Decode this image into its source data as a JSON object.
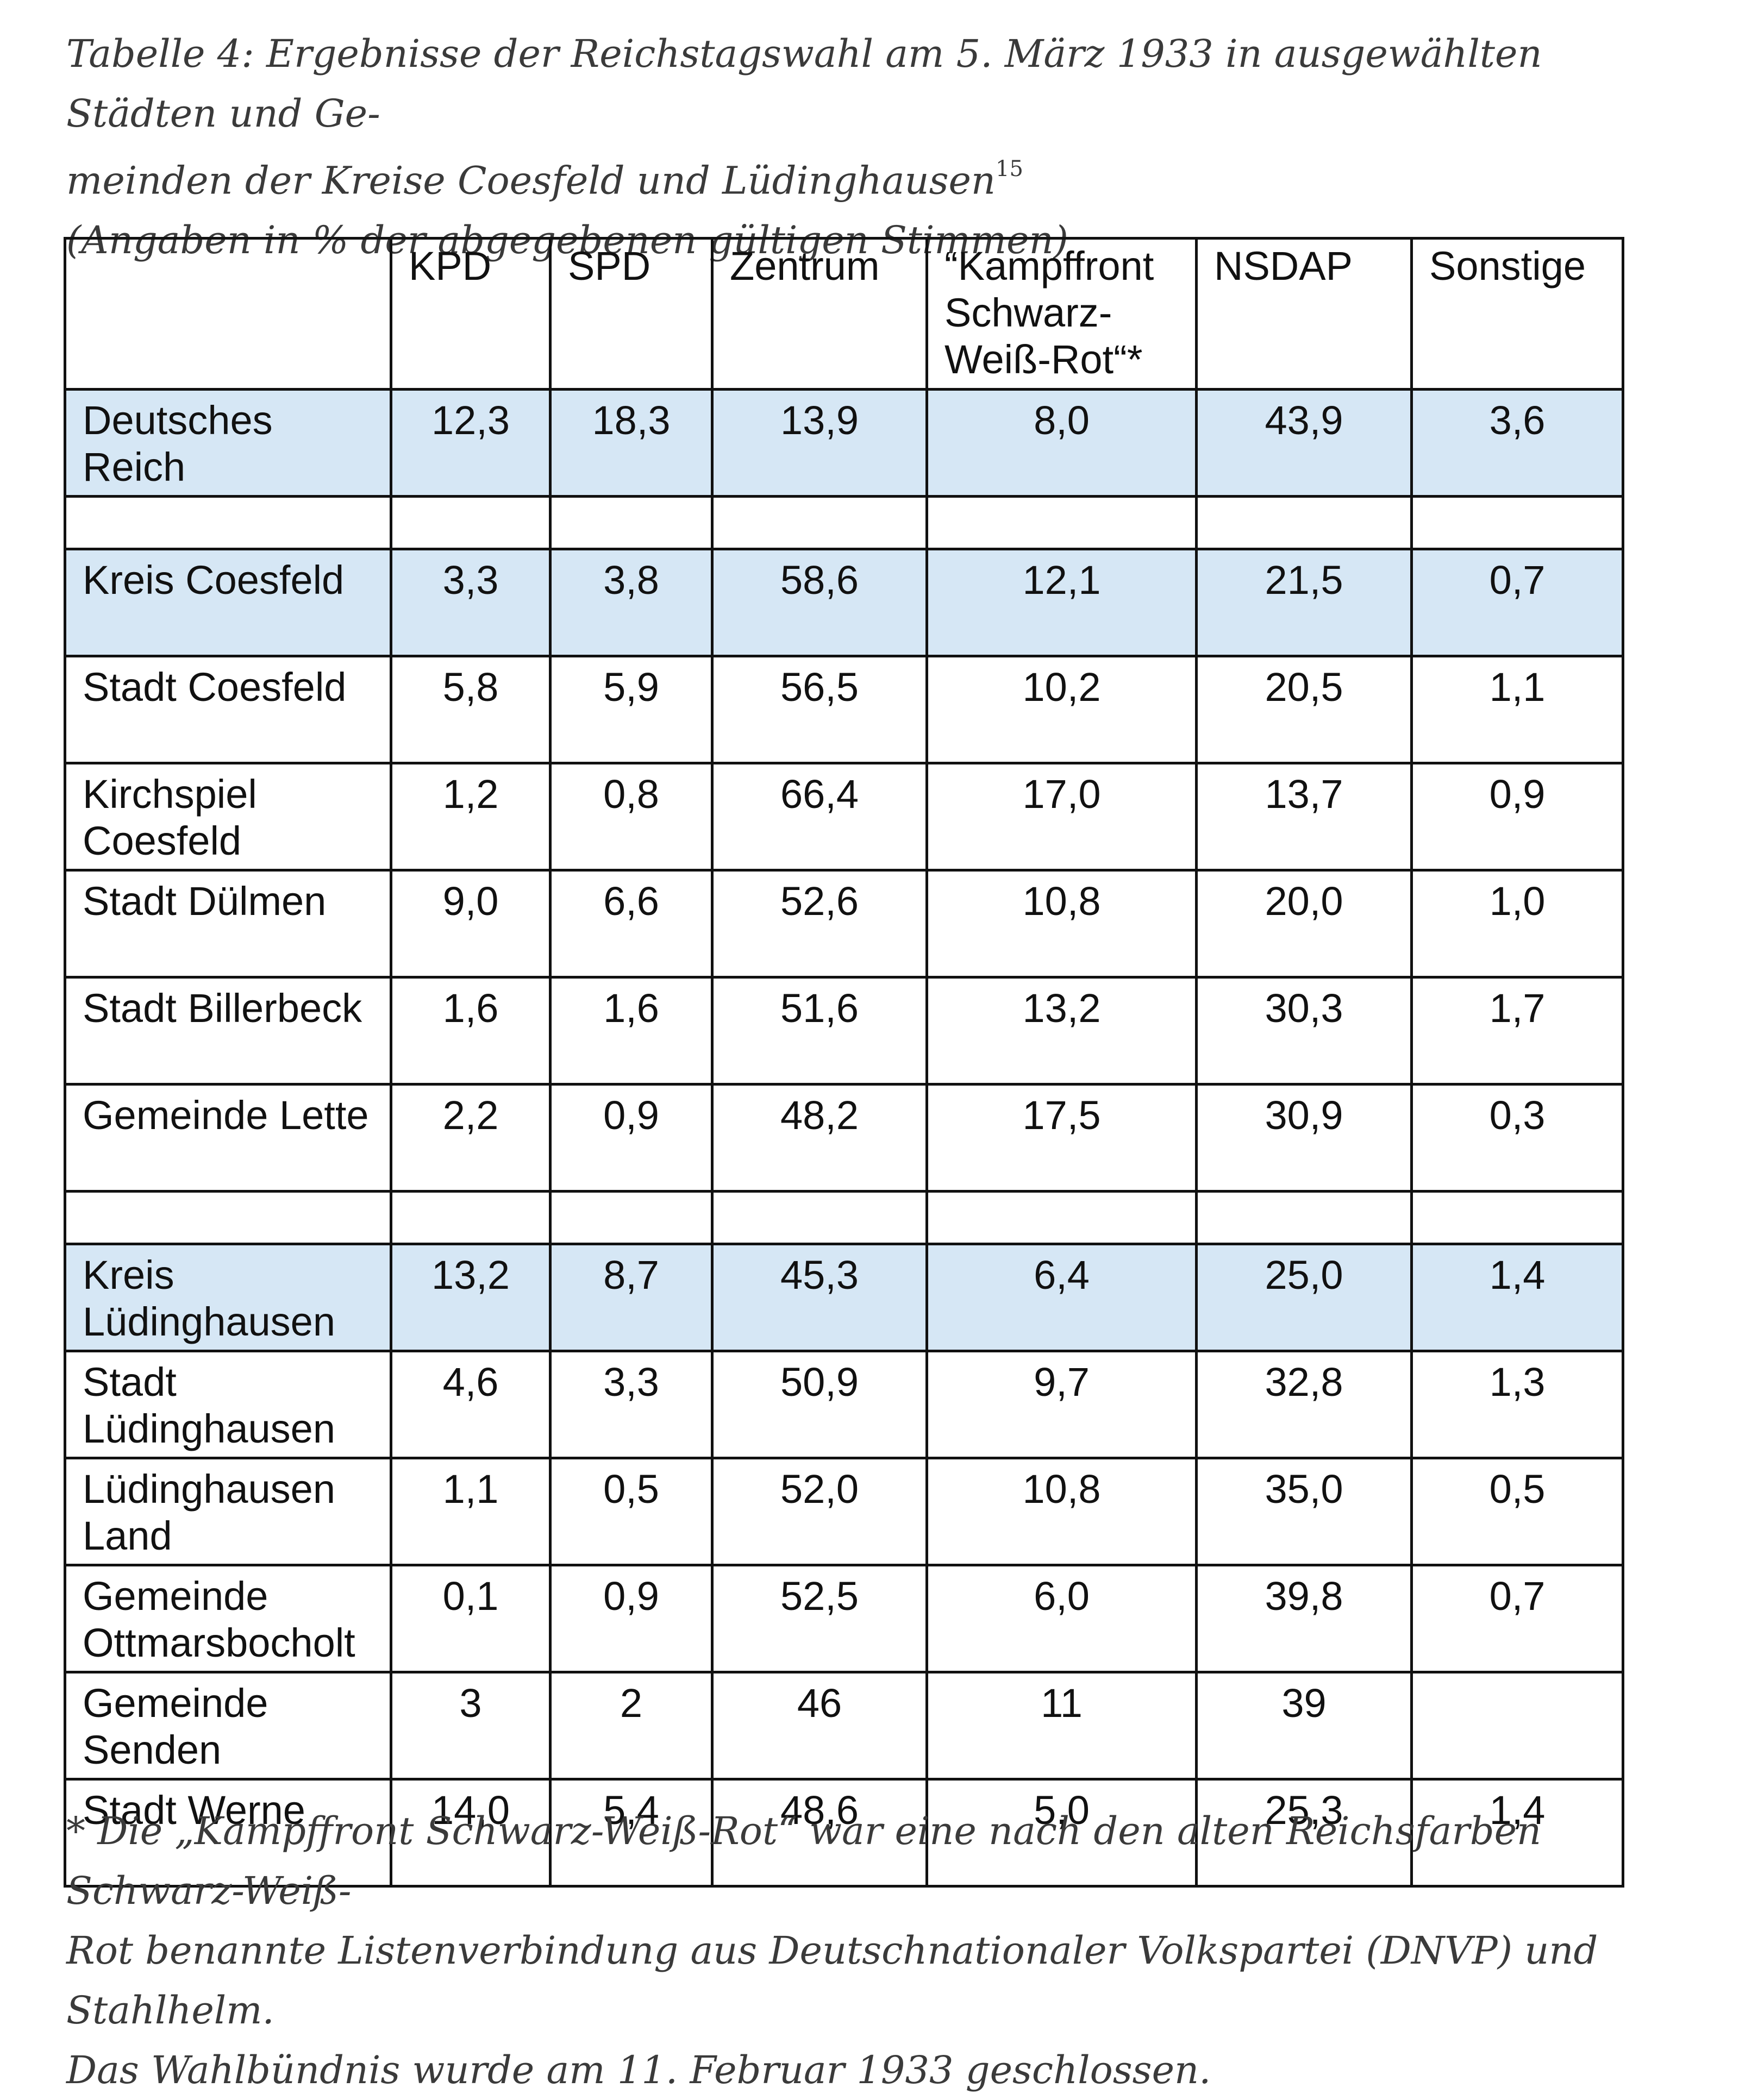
{
  "caption": {
    "line1": "Tabelle 4: Ergebnisse der Reichstagswahl am 5. März 1933 in ausgewählten Städten und Ge-",
    "line2": "meinden der Kreise Coesfeld und Lüdinghausen",
    "footnote_ref": "15",
    "line3": "(Angaben in % der abgegebenen gültigen Stimmen)"
  },
  "table": {
    "headers": [
      "",
      "KPD",
      "SPD",
      "Zentrum",
      "“Kampffront Schwarz-Weiß-Rot“*",
      "NSDAP",
      "Sonstige"
    ],
    "rows": [
      {
        "name": "Deutsches Reich",
        "values": [
          "12,3",
          "18,3",
          "13,9",
          "8,0",
          "43,9",
          "3,6"
        ]
      },
      {
        "name": "Kreis Coesfeld",
        "values": [
          "3,3",
          "3,8",
          "58,6",
          "12,1",
          "21,5",
          "0,7"
        ]
      },
      {
        "name": "Stadt Coesfeld",
        "values": [
          "5,8",
          "5,9",
          "56,5",
          "10,2",
          "20,5",
          "1,1"
        ]
      },
      {
        "name": "Kirchspiel Coesfeld",
        "values": [
          "1,2",
          "0,8",
          "66,4",
          "17,0",
          "13,7",
          "0,9"
        ]
      },
      {
        "name": "Stadt Dülmen",
        "values": [
          "9,0",
          "6,6",
          "52,6",
          "10,8",
          "20,0",
          "1,0"
        ]
      },
      {
        "name": "Stadt Billerbeck",
        "values": [
          "1,6",
          "1,6",
          "51,6",
          "13,2",
          "30,3",
          "1,7"
        ]
      },
      {
        "name": "Gemeinde Lette",
        "values": [
          "2,2",
          "0,9",
          "48,2",
          "17,5",
          "30,9",
          "0,3"
        ]
      },
      {
        "name": "Kreis Lüdinghausen",
        "values": [
          "13,2",
          "8,7",
          "45,3",
          "6,4",
          "25,0",
          "1,4"
        ]
      },
      {
        "name": "Stadt Lüdinghausen",
        "values": [
          "4,6",
          "3,3",
          "50,9",
          "9,7",
          "32,8",
          "1,3"
        ]
      },
      {
        "name": "Lüdinghausen Land",
        "values": [
          "1,1",
          "0,5",
          "52,0",
          "10,8",
          "35,0",
          "0,5"
        ]
      },
      {
        "name": "Gemeinde Ottmarsbocholt",
        "values": [
          "0,1",
          "0,9",
          "52,5",
          "6,0",
          "39,8",
          "0,7"
        ]
      },
      {
        "name": "Gemeinde Senden",
        "values": [
          "3",
          "2",
          "46",
          "11",
          "39",
          ""
        ]
      },
      {
        "name": "Stadt Werne",
        "values": [
          "14,0",
          "5,4",
          "48,6",
          "5,0",
          "25,3",
          "1,4"
        ]
      }
    ]
  },
  "footnote": {
    "line1": "* Die „Kampffront Schwarz-Weiß-Rot“ war eine nach den alten Reichsfarben Schwarz-Weiß-",
    "line2": "Rot benannte Listenverbindung aus Deutschnationaler Volkspartei (DNVP) und Stahlhelm.",
    "line3": "Das Wahlbündnis wurde am 11. Februar 1933 geschlossen."
  },
  "colors": {
    "highlight_row": "#d6e7f5",
    "border": "#111111"
  }
}
